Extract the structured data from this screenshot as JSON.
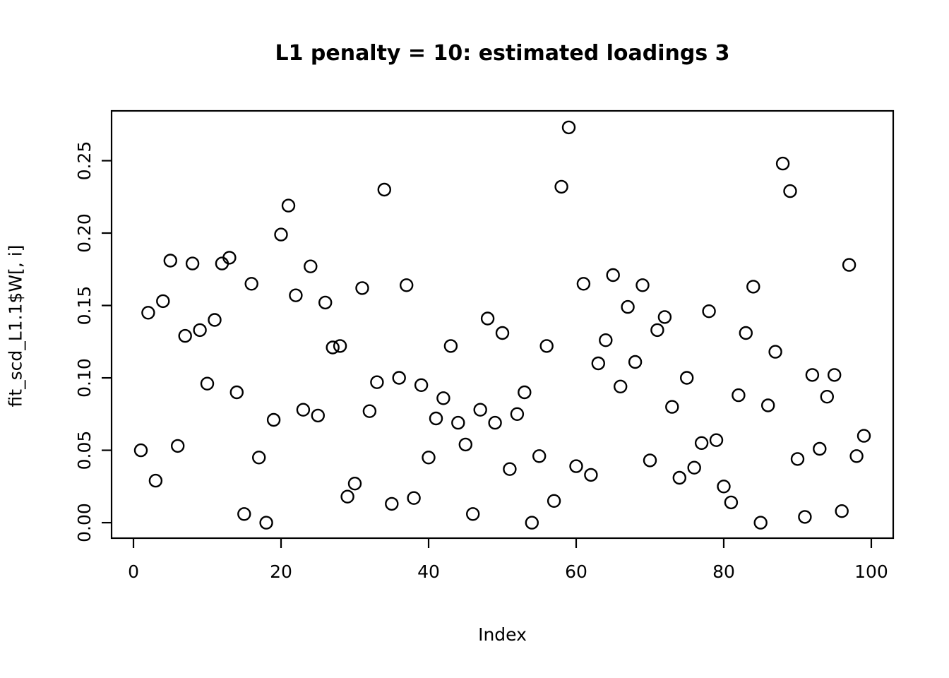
{
  "figure": {
    "title": "L1 penalty = 10: estimated loadings 3",
    "background_color": "#ffffff",
    "foreground_color": "#000000"
  },
  "chart_data": {
    "type": "scatter",
    "title": "L1 penalty = 10: estimated loadings 3",
    "xlabel": "Index",
    "ylabel": "fit_scd_L1.1$W[, i]",
    "marker": "open-circle",
    "marker_color": "#000000",
    "grid": false,
    "legend": "none",
    "xlim": [
      -2.97,
      102.97
    ],
    "ylim": [
      -0.0107,
      0.2844
    ],
    "x_ticks": [
      0,
      20,
      40,
      60,
      80,
      100
    ],
    "x_tick_labels": [
      "0",
      "20",
      "40",
      "60",
      "80",
      "100"
    ],
    "y_ticks": [
      0.0,
      0.05,
      0.1,
      0.15,
      0.2,
      0.25
    ],
    "y_tick_labels": [
      "0.00",
      "0.05",
      "0.10",
      "0.15",
      "0.20",
      "0.25"
    ],
    "x": [
      1,
      2,
      3,
      4,
      5,
      6,
      7,
      8,
      9,
      10,
      11,
      12,
      13,
      14,
      15,
      16,
      17,
      18,
      19,
      20,
      21,
      22,
      23,
      24,
      25,
      26,
      27,
      28,
      29,
      30,
      31,
      32,
      33,
      34,
      35,
      36,
      37,
      38,
      39,
      40,
      41,
      42,
      43,
      44,
      45,
      46,
      47,
      48,
      49,
      50,
      51,
      52,
      53,
      54,
      55,
      56,
      57,
      58,
      59,
      60,
      61,
      62,
      63,
      64,
      65,
      66,
      67,
      68,
      69,
      70,
      71,
      72,
      73,
      74,
      75,
      76,
      77,
      78,
      79,
      80,
      81,
      82,
      83,
      84,
      85,
      86,
      87,
      88,
      89,
      90,
      91,
      92,
      93,
      94,
      95,
      96,
      97,
      98,
      99
    ],
    "y": [
      0.05,
      0.145,
      0.029,
      0.153,
      0.181,
      0.053,
      0.129,
      0.179,
      0.133,
      0.096,
      0.14,
      0.179,
      0.183,
      0.09,
      0.006,
      0.165,
      0.045,
      0.0,
      0.071,
      0.199,
      0.219,
      0.157,
      0.078,
      0.177,
      0.074,
      0.152,
      0.121,
      0.122,
      0.018,
      0.027,
      0.162,
      0.077,
      0.097,
      0.23,
      0.013,
      0.1,
      0.164,
      0.017,
      0.095,
      0.045,
      0.072,
      0.086,
      0.122,
      0.069,
      0.054,
      0.006,
      0.078,
      0.141,
      0.069,
      0.131,
      0.037,
      0.075,
      0.09,
      0.0,
      0.046,
      0.122,
      0.015,
      0.232,
      0.273,
      0.039,
      0.165,
      0.033,
      0.11,
      0.126,
      0.171,
      0.094,
      0.149,
      0.111,
      0.164,
      0.043,
      0.133,
      0.142,
      0.08,
      0.031,
      0.1,
      0.038,
      0.055,
      0.146,
      0.057,
      0.025,
      0.014,
      0.088,
      0.131,
      0.163,
      0.0,
      0.081,
      0.118,
      0.248,
      0.229,
      0.044,
      0.004,
      0.102,
      0.051,
      0.087,
      0.102,
      0.008,
      0.178,
      0.046,
      0.06
    ]
  }
}
